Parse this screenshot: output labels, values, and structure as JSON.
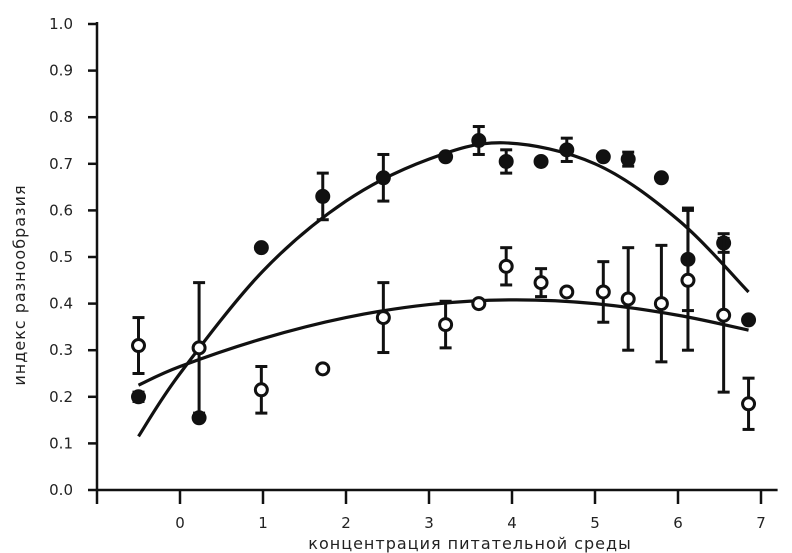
{
  "chart_data": {
    "type": "scatter",
    "title": "",
    "xlabel": "концентрация питательной среды",
    "ylabel": "индекс разнообразия",
    "xlim": [
      -1,
      7.2
    ],
    "ylim": [
      0,
      1.0
    ],
    "x_ticks": [
      "0",
      "1",
      "2",
      "3",
      "4",
      "5",
      "6",
      "7"
    ],
    "y_ticks": [
      "0.0",
      "0.1",
      "0.2",
      "0.3",
      "0.4",
      "0.5",
      "0.6",
      "0.7",
      "0.8",
      "0.9",
      "1.0"
    ],
    "grid": false,
    "legend": "none",
    "series": [
      {
        "marker": "filled-circle",
        "color": "#111111",
        "points": [
          {
            "x": -0.5,
            "y": 0.2,
            "err": 0.01
          },
          {
            "x": 0.23,
            "y": 0.155
          },
          {
            "x": 0.98,
            "y": 0.52
          },
          {
            "x": 1.72,
            "y": 0.63,
            "err": 0.05
          },
          {
            "x": 2.45,
            "y": 0.67,
            "err": 0.05
          },
          {
            "x": 3.2,
            "y": 0.715
          },
          {
            "x": 3.6,
            "y": 0.75,
            "err": 0.03
          },
          {
            "x": 3.93,
            "y": 0.705,
            "err": 0.025
          },
          {
            "x": 4.35,
            "y": 0.705
          },
          {
            "x": 4.66,
            "y": 0.73,
            "err": 0.025
          },
          {
            "x": 5.1,
            "y": 0.715
          },
          {
            "x": 5.4,
            "y": 0.71,
            "err": 0.015
          },
          {
            "x": 5.8,
            "y": 0.67
          },
          {
            "x": 6.12,
            "y": 0.495,
            "err": 0.11
          },
          {
            "x": 6.55,
            "y": 0.53,
            "err": 0.02
          },
          {
            "x": 6.85,
            "y": 0.365
          }
        ],
        "fit": [
          {
            "x": -0.5,
            "y": 0.115
          },
          {
            "x": 0.0,
            "y": 0.25
          },
          {
            "x": 1.0,
            "y": 0.47
          },
          {
            "x": 2.0,
            "y": 0.62
          },
          {
            "x": 3.0,
            "y": 0.71
          },
          {
            "x": 3.9,
            "y": 0.745
          },
          {
            "x": 5.0,
            "y": 0.7
          },
          {
            "x": 6.0,
            "y": 0.58
          },
          {
            "x": 6.85,
            "y": 0.425
          }
        ]
      },
      {
        "marker": "open-circle",
        "color": "#111111",
        "points": [
          {
            "x": -0.5,
            "y": 0.31,
            "err": 0.06
          },
          {
            "x": 0.23,
            "y": 0.305,
            "err": 0.14
          },
          {
            "x": 0.98,
            "y": 0.215,
            "err": 0.05
          },
          {
            "x": 1.72,
            "y": 0.26
          },
          {
            "x": 2.45,
            "y": 0.37,
            "err": 0.075
          },
          {
            "x": 3.2,
            "y": 0.355,
            "err": 0.05
          },
          {
            "x": 3.6,
            "y": 0.4
          },
          {
            "x": 3.93,
            "y": 0.48,
            "err": 0.04
          },
          {
            "x": 4.35,
            "y": 0.445,
            "err": 0.03
          },
          {
            "x": 4.66,
            "y": 0.425
          },
          {
            "x": 5.1,
            "y": 0.425,
            "err": 0.065
          },
          {
            "x": 5.4,
            "y": 0.41,
            "err": 0.11
          },
          {
            "x": 5.8,
            "y": 0.4,
            "err": 0.125
          },
          {
            "x": 6.12,
            "y": 0.45,
            "err": 0.15
          },
          {
            "x": 6.55,
            "y": 0.375,
            "err": 0.165
          },
          {
            "x": 6.85,
            "y": 0.185,
            "err": 0.055
          }
        ],
        "fit": [
          {
            "x": -0.5,
            "y": 0.225
          },
          {
            "x": 0.0,
            "y": 0.265
          },
          {
            "x": 1.0,
            "y": 0.325
          },
          {
            "x": 2.0,
            "y": 0.37
          },
          {
            "x": 3.0,
            "y": 0.398
          },
          {
            "x": 4.0,
            "y": 0.408
          },
          {
            "x": 5.0,
            "y": 0.4
          },
          {
            "x": 6.0,
            "y": 0.375
          },
          {
            "x": 6.85,
            "y": 0.343
          }
        ]
      }
    ]
  }
}
